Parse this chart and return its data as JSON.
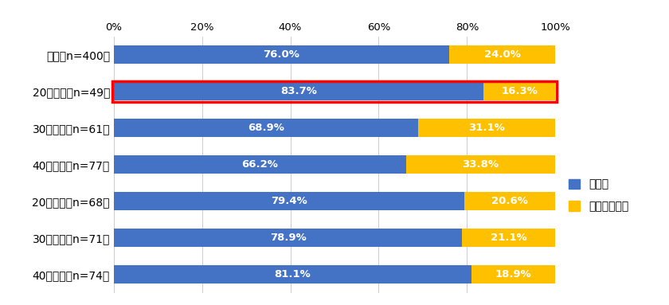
{
  "categories": [
    "全体（n=400）",
    "20代男性（n=49）",
    "30代男性（n=61）",
    "40代男性（n=77）",
    "20代女性（n=68）",
    "30代女性（n=71）",
    "40代女性（n=74）"
  ],
  "felt": [
    76.0,
    83.7,
    68.9,
    66.2,
    79.4,
    78.9,
    81.1
  ],
  "not_felt": [
    24.0,
    16.3,
    31.1,
    33.8,
    20.6,
    21.1,
    18.9
  ],
  "blue_color": "#4472C4",
  "gold_color": "#FFC000",
  "highlight_row": 1,
  "highlight_color": "#FF0000",
  "legend_felt": "感じた",
  "legend_not_felt": "感じなかった",
  "bar_height": 0.5,
  "bg_color": "#FFFFFF",
  "label_fontsize": 9.5,
  "tick_fontsize": 9.5,
  "ytick_fontsize": 10,
  "legend_fontsize": 10
}
